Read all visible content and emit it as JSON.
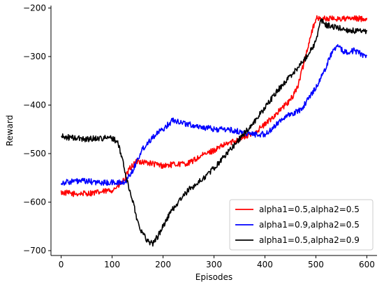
{
  "chart_data": {
    "type": "line",
    "title": "",
    "xlabel": "Episodes",
    "ylabel": "Reward",
    "xlim": [
      -20,
      620
    ],
    "ylim": [
      -710,
      -195
    ],
    "xticks": [
      0,
      100,
      200,
      300,
      400,
      500,
      600
    ],
    "yticks": [
      -700,
      -600,
      -500,
      -400,
      -300,
      -200
    ],
    "xtick_labels": [
      "0",
      "100",
      "200",
      "300",
      "400",
      "500",
      "600"
    ],
    "ytick_labels": [
      "−700",
      "−600",
      "−500",
      "−400",
      "−300",
      "−200"
    ],
    "grid": false,
    "legend_position": "lower-right",
    "series": [
      {
        "name": "alpha1=0.5,alpha2=0.5",
        "color": "#ff0000",
        "x": [
          0,
          25,
          50,
          75,
          100,
          115,
          125,
          135,
          150,
          175,
          200,
          225,
          250,
          275,
          300,
          325,
          350,
          375,
          400,
          425,
          450,
          465,
          475,
          490,
          500,
          525,
          550,
          575,
          600
        ],
        "y": [
          -580,
          -583,
          -582,
          -580,
          -575,
          -565,
          -552,
          -530,
          -515,
          -520,
          -525,
          -522,
          -520,
          -505,
          -493,
          -480,
          -470,
          -460,
          -440,
          -415,
          -390,
          -360,
          -320,
          -255,
          -222,
          -222,
          -222,
          -222,
          -222
        ]
      },
      {
        "name": "alpha1=0.9,alpha2=0.5",
        "color": "#0000ff",
        "x": [
          0,
          25,
          50,
          75,
          100,
          125,
          140,
          160,
          180,
          200,
          220,
          250,
          275,
          300,
          325,
          350,
          375,
          400,
          415,
          430,
          450,
          470,
          490,
          510,
          530,
          540,
          555,
          575,
          590,
          600
        ],
        "y": [
          -560,
          -557,
          -557,
          -560,
          -560,
          -560,
          -535,
          -490,
          -465,
          -450,
          -430,
          -440,
          -445,
          -450,
          -450,
          -455,
          -460,
          -460,
          -450,
          -430,
          -420,
          -410,
          -380,
          -345,
          -295,
          -278,
          -290,
          -288,
          -295,
          -300
        ]
      },
      {
        "name": "alpha1=0.5,alpha2=0.9",
        "color": "#000000",
        "x": [
          0,
          25,
          50,
          75,
          100,
          110,
          120,
          130,
          140,
          150,
          160,
          170,
          180,
          190,
          200,
          215,
          230,
          250,
          275,
          300,
          325,
          350,
          375,
          400,
          425,
          450,
          475,
          500,
          510,
          520,
          540,
          560,
          580,
          600
        ],
        "y": [
          -465,
          -468,
          -470,
          -468,
          -468,
          -475,
          -510,
          -560,
          -595,
          -640,
          -665,
          -680,
          -685,
          -670,
          -650,
          -620,
          -600,
          -575,
          -555,
          -530,
          -500,
          -470,
          -440,
          -405,
          -370,
          -340,
          -310,
          -270,
          -225,
          -235,
          -240,
          -245,
          -248,
          -250
        ]
      }
    ]
  }
}
